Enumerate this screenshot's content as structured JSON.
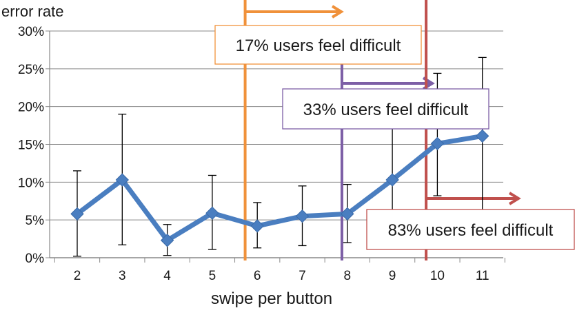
{
  "chart_data": {
    "type": "line",
    "ylabel": "error rate",
    "xlabel": "swipe per button",
    "categories": [
      "2",
      "3",
      "4",
      "5",
      "6",
      "7",
      "8",
      "9",
      "10",
      "11"
    ],
    "x": [
      2,
      3,
      4,
      5,
      6,
      7,
      8,
      9,
      10,
      11
    ],
    "y_ticks": [
      "0%",
      "5%",
      "10%",
      "15%",
      "20%",
      "25%",
      "30%"
    ],
    "ylim": [
      0,
      0.3
    ],
    "grid": true,
    "series": [
      {
        "values": [
          0.058,
          0.103,
          0.023,
          0.059,
          0.042,
          0.055,
          0.058,
          0.103,
          0.151,
          0.161
        ],
        "error_low": [
          0.002,
          0.017,
          0.003,
          0.011,
          0.013,
          0.016,
          0.02,
          0.055,
          0.082,
          0.058
        ],
        "error_high": [
          0.115,
          0.19,
          0.044,
          0.109,
          0.073,
          0.095,
          0.097,
          0.18,
          0.244,
          0.265
        ]
      }
    ],
    "annotations": [
      {
        "text": "17% users feel difficult",
        "x": 5.73,
        "color": "#f0913a"
      },
      {
        "text": "33% users feel difficult",
        "x": 7.88,
        "color": "#7d5fa6"
      },
      {
        "text": "83% users feel difficult",
        "x": 9.75,
        "color": "#c0504d"
      }
    ],
    "colors": {
      "series": "#4a7ec0",
      "errorbar": "#000000",
      "grid": "#888888",
      "axis": "#888888"
    }
  }
}
